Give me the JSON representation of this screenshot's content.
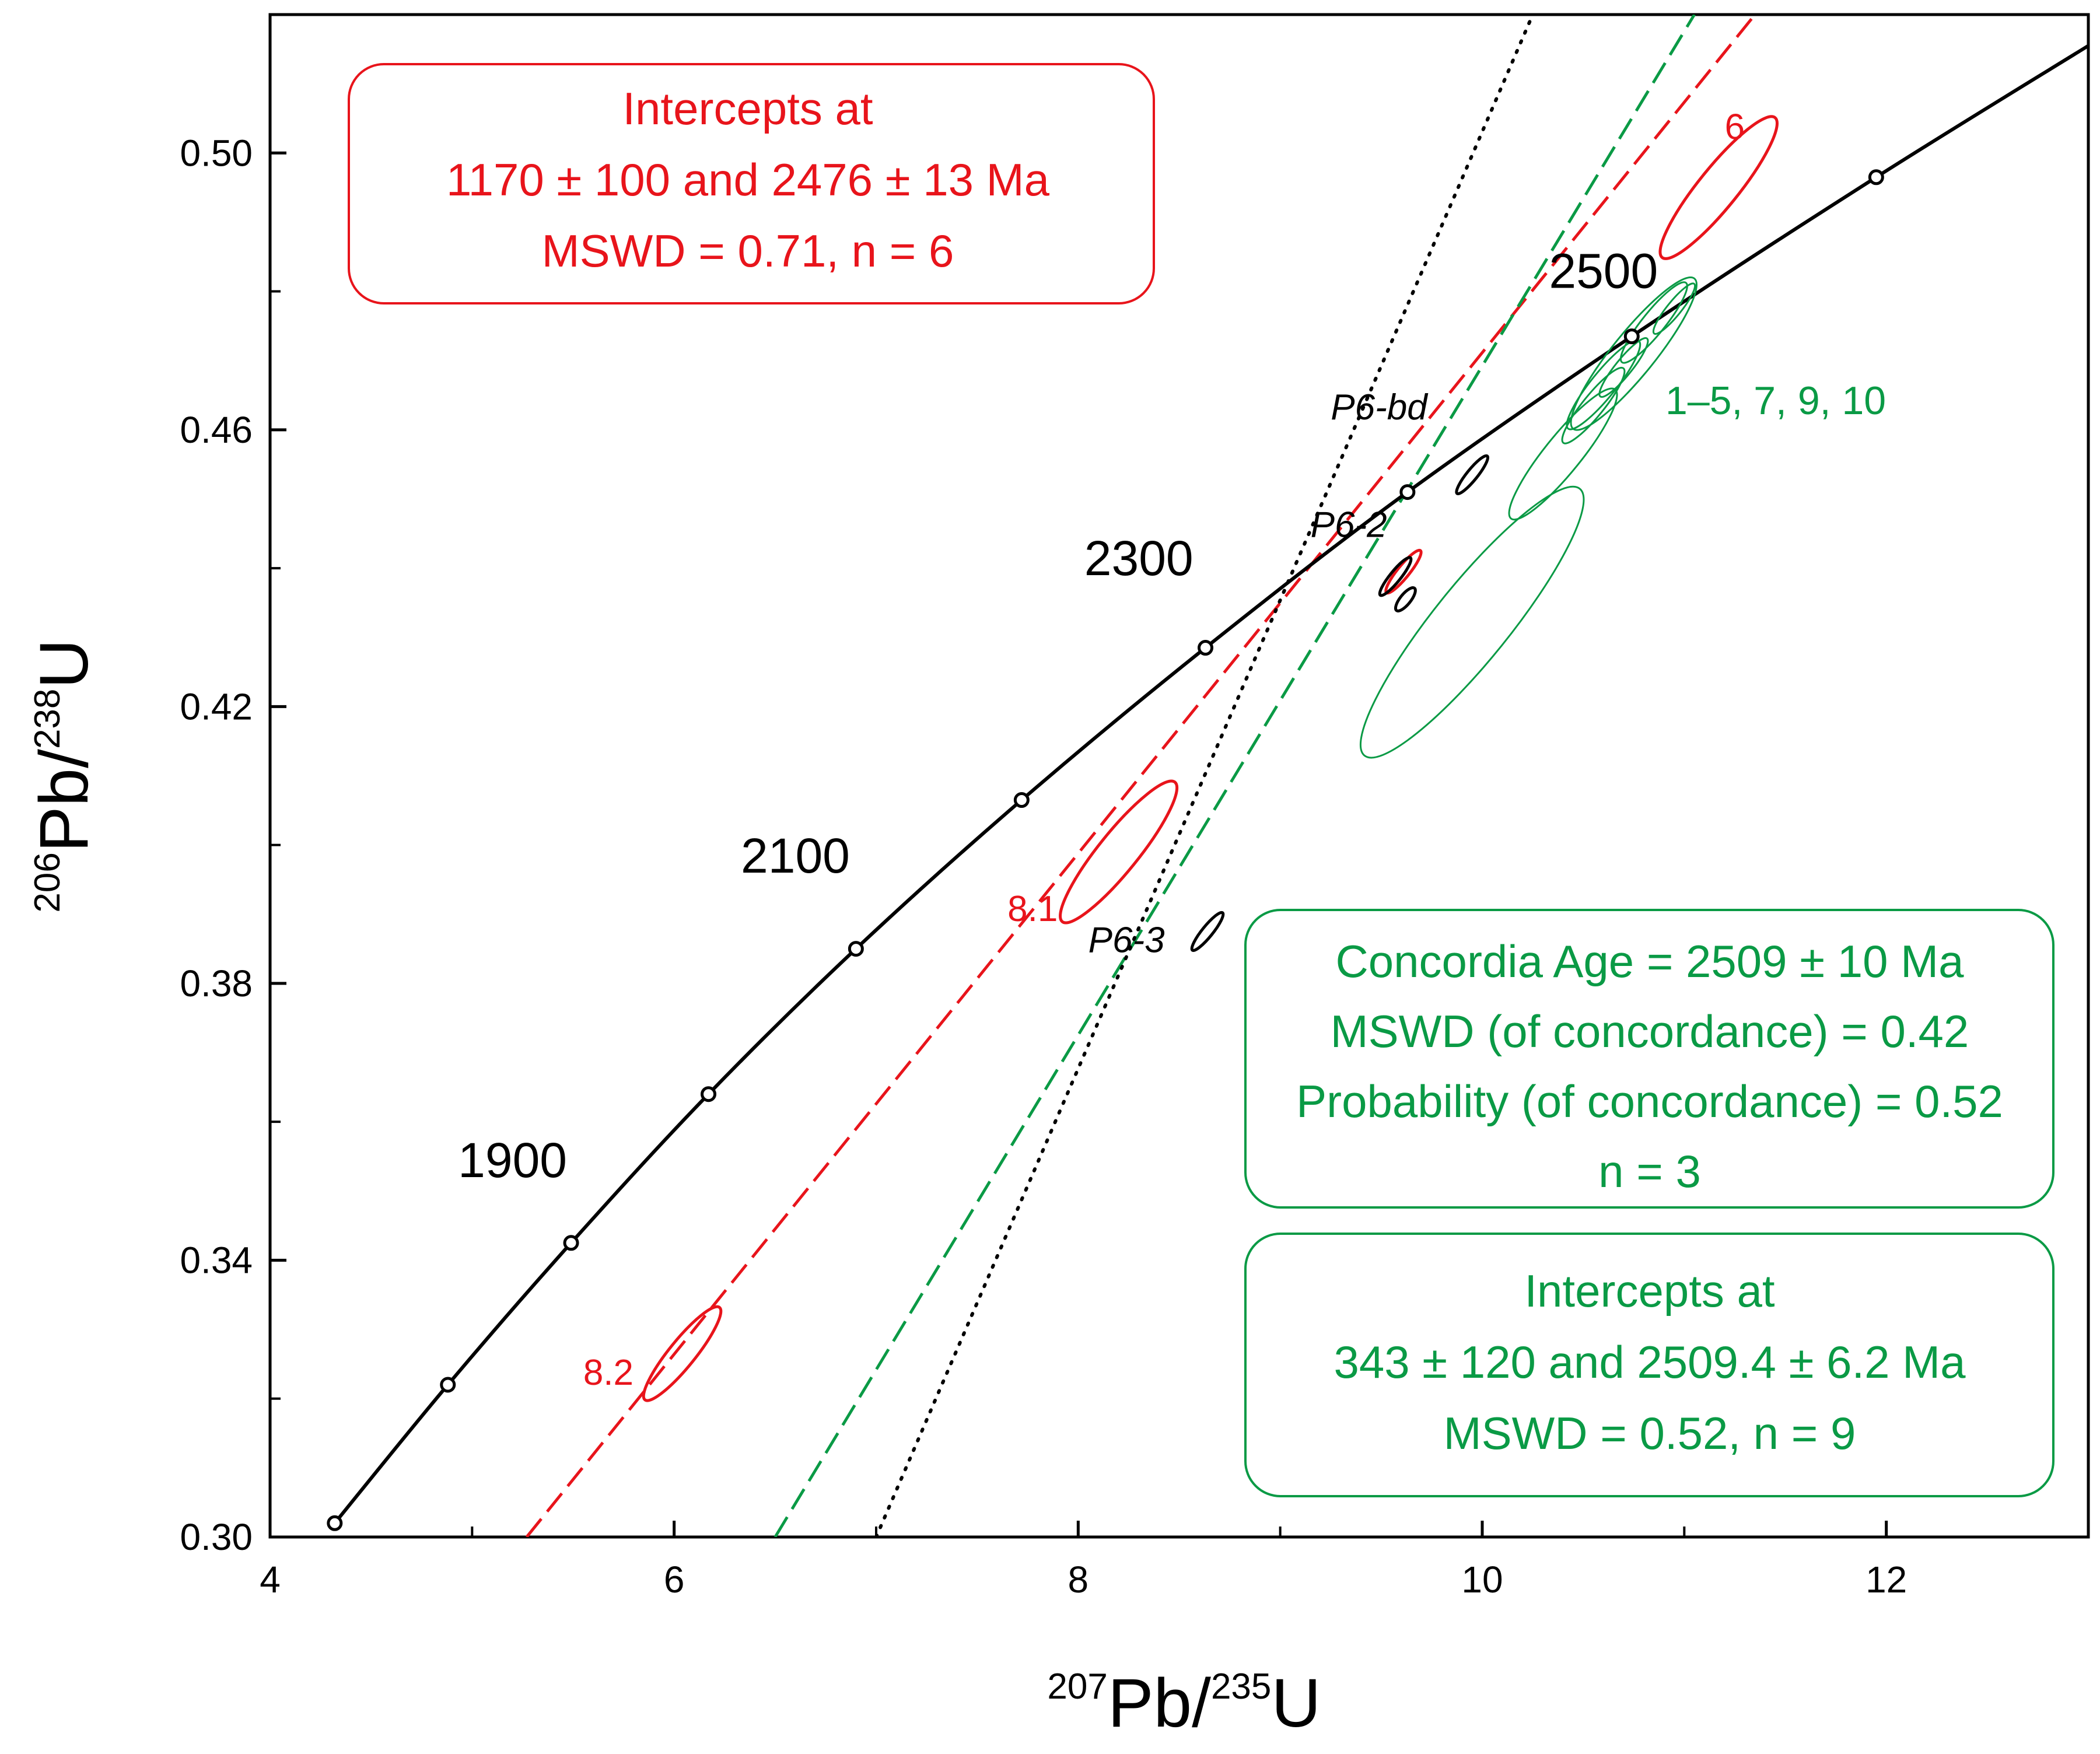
{
  "chart_data": {
    "type": "scatter",
    "subtype": "concordia",
    "x_axis": {
      "pre": "207",
      "base1": "Pb/",
      "sup2": "235",
      "base2": "U",
      "ticks": [
        "4",
        "6",
        "8",
        "10",
        "12"
      ],
      "tick_values": [
        4,
        6,
        8,
        10,
        12
      ],
      "minor_ticks": [
        5,
        7,
        9,
        11
      ],
      "range": [
        4,
        13
      ]
    },
    "y_axis": {
      "pre": "206",
      "base1": "Pb/",
      "sup2": "238",
      "base2": "U",
      "ticks": [
        "0.30",
        "0.34",
        "0.38",
        "0.42",
        "0.46",
        "0.50"
      ],
      "tick_values": [
        0.3,
        0.34,
        0.38,
        0.42,
        0.46,
        0.5
      ],
      "minor_ticks": [
        0.32,
        0.36,
        0.4,
        0.44,
        0.48
      ],
      "range": [
        0.3,
        0.52
      ]
    },
    "concordia": {
      "points": [
        [
          4.32,
          0.302
        ],
        [
          4.88,
          0.322
        ],
        [
          5.49,
          0.3425
        ],
        [
          6.17,
          0.364
        ],
        [
          6.9,
          0.385
        ],
        [
          7.72,
          0.4065
        ],
        [
          8.63,
          0.4285
        ],
        [
          9.63,
          0.451
        ],
        [
          10.74,
          0.4735
        ],
        [
          11.95,
          0.4965
        ],
        [
          13.0,
          0.5155
        ]
      ],
      "markers": [
        [
          4.32,
          0.302
        ],
        [
          4.88,
          0.322
        ],
        [
          5.49,
          0.3425
        ],
        [
          6.17,
          0.364
        ],
        [
          6.9,
          0.385
        ],
        [
          7.72,
          0.4065
        ],
        [
          8.63,
          0.4285
        ],
        [
          9.63,
          0.451
        ],
        [
          10.74,
          0.4735
        ],
        [
          11.95,
          0.4965
        ]
      ],
      "age_labels": [
        {
          "text": "1900",
          "x": 5.2,
          "y": 0.352
        },
        {
          "text": "2100",
          "x": 6.6,
          "y": 0.396
        },
        {
          "text": "2300",
          "x": 8.3,
          "y": 0.439
        },
        {
          "text": "2500",
          "x": 10.6,
          "y": 0.4805
        }
      ]
    },
    "discordia_lines": [
      {
        "name": "red",
        "color": "#e8141b",
        "style": "dashed",
        "from": [
          5.27,
          0.3
        ],
        "to": [
          11.35,
          0.52
        ]
      },
      {
        "name": "green",
        "color": "#0a9a45",
        "style": "dashed",
        "from": [
          6.5,
          0.3
        ],
        "to": [
          11.05,
          0.52
        ]
      },
      {
        "name": "black",
        "color": "#000000",
        "style": "dotted",
        "from": [
          7.0,
          0.3
        ],
        "to": [
          10.25,
          0.52
        ]
      }
    ],
    "ellipses": [
      {
        "color": "#e8141b",
        "cx": 11.17,
        "cy": 0.495,
        "rx": 0.17,
        "ry": 0.012,
        "label": "6",
        "lx": 11.2,
        "ly": 0.502
      },
      {
        "color": "#e8141b",
        "cx": 8.2,
        "cy": 0.399,
        "rx": 0.26,
        "ry": 0.0105,
        "label": "8.1",
        "lx": 7.65,
        "ly": 0.389
      },
      {
        "color": "#e8141b",
        "cx": 6.04,
        "cy": 0.3265,
        "rx": 0.17,
        "ry": 0.007,
        "label": "8.2",
        "lx": 5.55,
        "ly": 0.322
      },
      {
        "color": "#e8141b",
        "cx": 9.61,
        "cy": 0.4395,
        "rx": 0.06,
        "ry": 0.0035,
        "label": "",
        "lx": 0,
        "ly": 0
      },
      {
        "color": "#000000",
        "cx": 9.95,
        "cy": 0.4535,
        "rx": 0.06,
        "ry": 0.003,
        "label": "P6-bd",
        "lx": 9.25,
        "ly": 0.4615
      },
      {
        "color": "#000000",
        "cx": 9.57,
        "cy": 0.4388,
        "rx": 0.06,
        "ry": 0.003,
        "label": "P6-2",
        "lx": 9.15,
        "ly": 0.4445
      },
      {
        "color": "#000000",
        "cx": 8.64,
        "cy": 0.3875,
        "rx": 0.06,
        "ry": 0.003,
        "label": "P6-3",
        "lx": 8.05,
        "ly": 0.3845
      },
      {
        "color": "#000000",
        "cx": 9.62,
        "cy": 0.4355,
        "rx": 0.035,
        "ry": 0.0018,
        "label": "",
        "lx": 0,
        "ly": 0
      },
      {
        "color": "#0a9a45",
        "cx": 10.4,
        "cy": 0.4565,
        "rx": 0.32,
        "ry": 0.0075,
        "label": "",
        "lx": 0,
        "ly": 0
      },
      {
        "color": "#0a9a45",
        "cx": 9.95,
        "cy": 0.4322,
        "rx": 0.7,
        "ry": 0.014,
        "label": "",
        "lx": 0,
        "ly": 0
      },
      {
        "color": "#0a9a45",
        "cx": 10.75,
        "cy": 0.471,
        "rx": 0.35,
        "ry": 0.0095,
        "label": "",
        "lx": 0,
        "ly": 0
      },
      {
        "color": "#0a9a45",
        "cx": 10.85,
        "cy": 0.4755,
        "rx": 0.2,
        "ry": 0.0045,
        "label": "",
        "lx": 0,
        "ly": 0
      },
      {
        "color": "#0a9a45",
        "cx": 10.6,
        "cy": 0.4665,
        "rx": 0.22,
        "ry": 0.005,
        "label": "",
        "lx": 0,
        "ly": 0
      },
      {
        "color": "#0a9a45",
        "cx": 10.7,
        "cy": 0.469,
        "rx": 0.14,
        "ry": 0.0035,
        "label": "",
        "lx": 0,
        "ly": 0
      },
      {
        "color": "#0a9a45",
        "cx": 10.95,
        "cy": 0.4775,
        "rx": 0.12,
        "ry": 0.003,
        "label": "",
        "lx": 0,
        "ly": 0
      },
      {
        "color": "#0a9a45",
        "cx": 10.55,
        "cy": 0.4635,
        "rx": 0.18,
        "ry": 0.0045,
        "label": "",
        "lx": 0,
        "ly": 0
      }
    ],
    "green_group_label": "1–5, 7, 9, 10",
    "annotations": {
      "red_box": {
        "lines": [
          "Intercepts at",
          "1170 ± 100 and 2476 ± 13  Ma",
          "MSWD = 0.71, n = 6"
        ]
      },
      "green_box_1": {
        "lines": [
          "Concordia Age = 2509 ± 10 Ma",
          "MSWD (of concordance) = 0.42",
          "Probability (of concordance) = 0.52",
          "n = 3"
        ]
      },
      "green_box_2": {
        "lines": [
          "Intercepts at",
          "343 ± 120 and 2509.4 ± 6.2 Ma",
          "MSWD = 0.52, n = 9"
        ]
      }
    }
  }
}
